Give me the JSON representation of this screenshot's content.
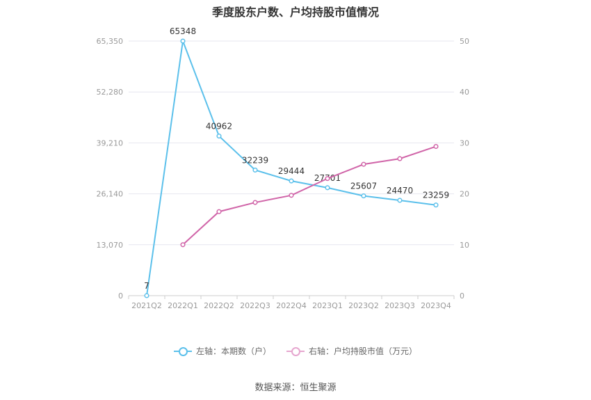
{
  "chart_data": {
    "type": "line",
    "title": "季度股东户数、户均持股市值情况",
    "categories": [
      "2021Q2",
      "2022Q1",
      "2022Q2",
      "2022Q3",
      "2022Q4",
      "2023Q1",
      "2023Q2",
      "2023Q3",
      "2023Q4"
    ],
    "series": [
      {
        "name": "左轴：本期数（户）",
        "axis": "left",
        "color": "#5bc0eb",
        "values": [
          7,
          65348,
          40962,
          32239,
          29444,
          27701,
          25607,
          24470,
          23259
        ],
        "labels": [
          "7",
          "65348",
          "40962",
          "32239",
          "29444",
          "27701",
          "25607",
          "24470",
          "23259"
        ]
      },
      {
        "name": "右轴：户均持股市值（万元）",
        "axis": "right",
        "color": "#d064a8",
        "values": [
          null,
          10.0,
          16.5,
          18.3,
          19.7,
          23.0,
          25.8,
          26.9,
          29.3
        ]
      }
    ],
    "y_left": {
      "ticks": [
        0,
        13070,
        26140,
        39210,
        52280,
        65350
      ],
      "tick_labels": [
        "0",
        "13,070",
        "26,140",
        "39,210",
        "52,280",
        "65,350"
      ],
      "range": [
        0,
        65350
      ]
    },
    "y_right": {
      "ticks": [
        0,
        10,
        20,
        30,
        40,
        50
      ],
      "tick_labels": [
        "0",
        "10",
        "20",
        "30",
        "40",
        "50"
      ],
      "range": [
        0,
        50
      ]
    },
    "grid": true,
    "legend_position": "bottom"
  },
  "source": "数据来源：恒生聚源"
}
